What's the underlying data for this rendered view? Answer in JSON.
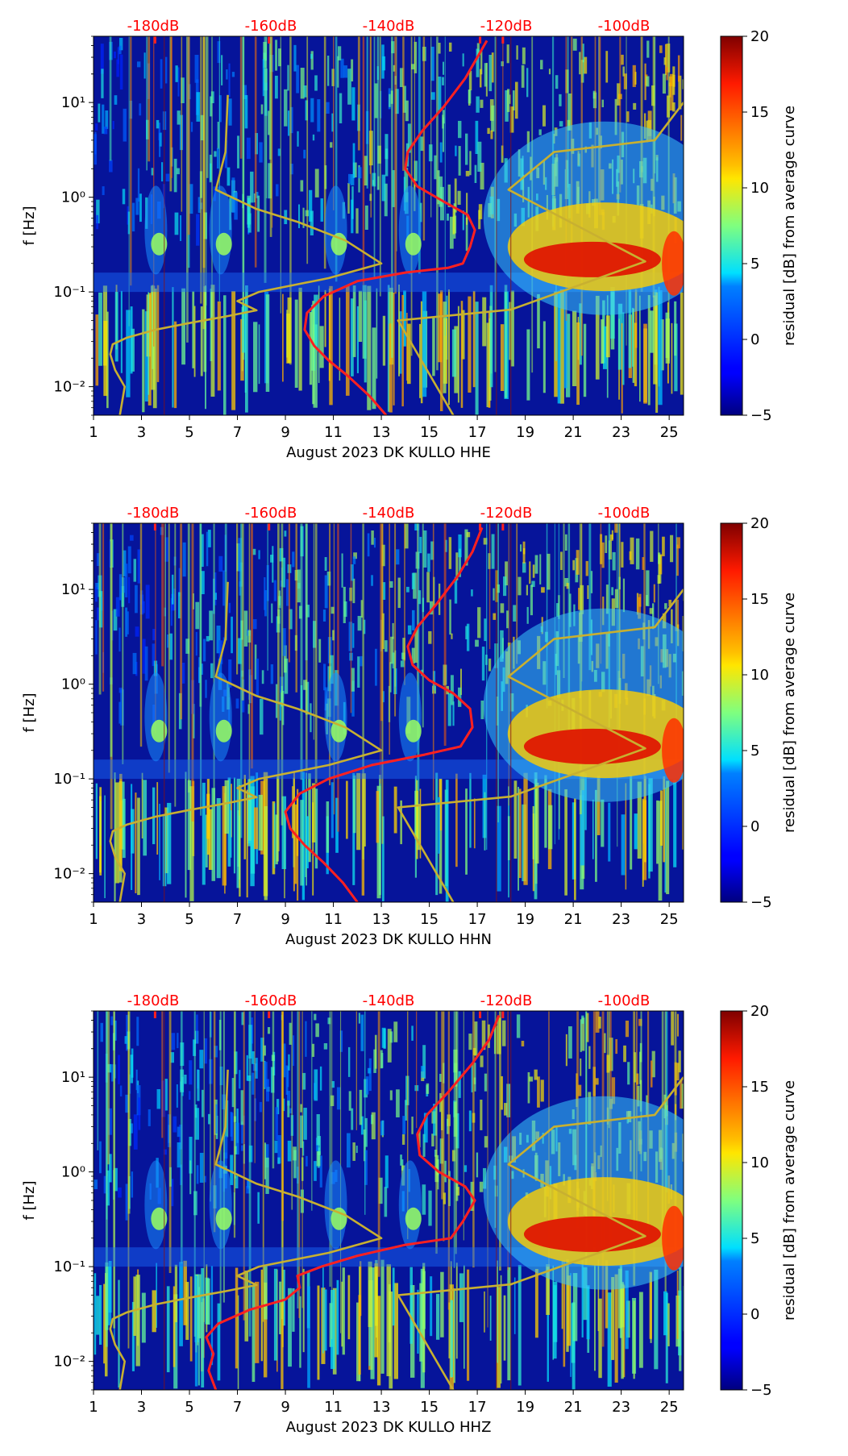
{
  "chart_data": [
    {
      "type": "heatmap",
      "xlabel": "August 2023 DK KULLO  HHE",
      "ylabel": "f [Hz]",
      "x_ticks": [
        "1",
        "3",
        "5",
        "7",
        "9",
        "11",
        "13",
        "15",
        "17",
        "19",
        "21",
        "23",
        "25"
      ],
      "xlim": [
        1,
        25.6
      ],
      "y_ticks": [
        "10⁻²",
        "10⁻¹",
        "10⁰",
        "10¹"
      ],
      "ylim": [
        0.005,
        50
      ],
      "y_scale": "log",
      "top_ticks": [
        "-180dB",
        "-160dB",
        "-140dB",
        "-120dB",
        "-100dB"
      ],
      "colorbar": {
        "label": "residual [dB] from average curve",
        "ticks": [
          "20",
          "15",
          "10",
          "5",
          "0",
          "−5"
        ],
        "range": [
          -5,
          20
        ],
        "colormap": "jet"
      },
      "series": [
        {
          "color": "#ff2020",
          "points": [
            [
              13.2,
              0.005
            ],
            [
              12.5,
              0.008
            ],
            [
              11.6,
              0.013
            ],
            [
              10.8,
              0.019
            ],
            [
              10.2,
              0.027
            ],
            [
              9.8,
              0.04
            ],
            [
              9.9,
              0.06
            ],
            [
              10.6,
              0.09
            ],
            [
              12.0,
              0.13
            ],
            [
              14.0,
              0.16
            ],
            [
              15.8,
              0.18
            ],
            [
              16.4,
              0.2
            ],
            [
              16.7,
              0.3
            ],
            [
              16.9,
              0.45
            ],
            [
              16.6,
              0.65
            ],
            [
              15.6,
              0.9
            ],
            [
              14.5,
              1.3
            ],
            [
              14.0,
              2.0
            ],
            [
              14.1,
              3.0
            ],
            [
              14.7,
              5.0
            ],
            [
              15.6,
              9.0
            ],
            [
              16.5,
              18.0
            ],
            [
              17.0,
              30.0
            ],
            [
              17.4,
              45.0
            ]
          ]
        },
        {
          "color": "#c8b030",
          "points": [
            [
              2.1,
              0.005
            ],
            [
              2.3,
              0.01
            ],
            [
              1.9,
              0.015
            ],
            [
              1.7,
              0.022
            ],
            [
              1.8,
              0.028
            ],
            [
              2.4,
              0.033
            ],
            [
              3.6,
              0.04
            ],
            [
              5.0,
              0.047
            ],
            [
              6.5,
              0.055
            ],
            [
              7.8,
              0.064
            ],
            [
              7.0,
              0.08
            ],
            [
              7.9,
              0.1
            ],
            [
              10.8,
              0.14
            ],
            [
              13.0,
              0.2
            ],
            [
              11.5,
              0.35
            ],
            [
              9.5,
              0.55
            ],
            [
              7.8,
              0.75
            ],
            [
              6.1,
              1.2
            ],
            [
              6.5,
              3.0
            ],
            [
              6.6,
              12.0
            ]
          ]
        },
        {
          "color": "#c8b030",
          "points": [
            [
              16.0,
              0.005
            ],
            [
              13.7,
              0.05
            ],
            [
              18.4,
              0.065
            ],
            [
              24.0,
              0.21
            ],
            [
              18.3,
              1.2
            ],
            [
              20.2,
              3.0
            ],
            [
              24.4,
              4.0
            ],
            [
              25.6,
              10.0
            ]
          ]
        }
      ]
    },
    {
      "type": "heatmap",
      "xlabel": "August 2023 DK KULLO  HHN",
      "ylabel": "f [Hz]",
      "x_ticks": [
        "1",
        "3",
        "5",
        "7",
        "9",
        "11",
        "13",
        "15",
        "17",
        "19",
        "21",
        "23",
        "25"
      ],
      "xlim": [
        1,
        25.6
      ],
      "y_ticks": [
        "10⁻²",
        "10⁻¹",
        "10⁰",
        "10¹"
      ],
      "ylim": [
        0.005,
        50
      ],
      "y_scale": "log",
      "top_ticks": [
        "-180dB",
        "-160dB",
        "-140dB",
        "-120dB",
        "-100dB"
      ],
      "colorbar": {
        "label": "residual [dB] from average curve",
        "ticks": [
          "20",
          "15",
          "10",
          "5",
          "0",
          "−5"
        ],
        "range": [
          -5,
          20
        ],
        "colormap": "jet"
      },
      "series": [
        {
          "color": "#ff2020",
          "points": [
            [
              12.0,
              0.005
            ],
            [
              11.4,
              0.008
            ],
            [
              10.6,
              0.013
            ],
            [
              9.8,
              0.02
            ],
            [
              9.2,
              0.03
            ],
            [
              9.0,
              0.045
            ],
            [
              9.6,
              0.07
            ],
            [
              10.8,
              0.1
            ],
            [
              12.6,
              0.14
            ],
            [
              14.8,
              0.18
            ],
            [
              16.3,
              0.22
            ],
            [
              16.8,
              0.35
            ],
            [
              16.7,
              0.55
            ],
            [
              16.0,
              0.8
            ],
            [
              15.0,
              1.1
            ],
            [
              14.3,
              1.6
            ],
            [
              14.1,
              2.5
            ],
            [
              14.5,
              4.0
            ],
            [
              15.3,
              7.0
            ],
            [
              16.2,
              14.0
            ],
            [
              16.8,
              25.0
            ],
            [
              17.2,
              45.0
            ]
          ]
        },
        {
          "color": "#c8b030",
          "points": [
            [
              2.1,
              0.005
            ],
            [
              2.3,
              0.01
            ],
            [
              1.9,
              0.015
            ],
            [
              1.7,
              0.022
            ],
            [
              1.8,
              0.028
            ],
            [
              2.4,
              0.033
            ],
            [
              3.6,
              0.04
            ],
            [
              5.0,
              0.047
            ],
            [
              6.5,
              0.055
            ],
            [
              7.8,
              0.064
            ],
            [
              7.0,
              0.08
            ],
            [
              7.9,
              0.1
            ],
            [
              10.8,
              0.14
            ],
            [
              13.0,
              0.2
            ],
            [
              11.5,
              0.35
            ],
            [
              9.5,
              0.55
            ],
            [
              7.8,
              0.75
            ],
            [
              6.1,
              1.2
            ],
            [
              6.5,
              3.0
            ],
            [
              6.6,
              12.0
            ]
          ]
        },
        {
          "color": "#c8b030",
          "points": [
            [
              16.0,
              0.005
            ],
            [
              13.7,
              0.05
            ],
            [
              18.4,
              0.065
            ],
            [
              24.0,
              0.21
            ],
            [
              18.3,
              1.2
            ],
            [
              20.2,
              3.0
            ],
            [
              24.4,
              4.0
            ],
            [
              25.6,
              10.0
            ]
          ]
        }
      ]
    },
    {
      "type": "heatmap",
      "xlabel": "August 2023 DK KULLO  HHZ",
      "ylabel": "f [Hz]",
      "x_ticks": [
        "1",
        "3",
        "5",
        "7",
        "9",
        "11",
        "13",
        "15",
        "17",
        "19",
        "21",
        "23",
        "25"
      ],
      "xlim": [
        1,
        25.6
      ],
      "y_ticks": [
        "10⁻²",
        "10⁻¹",
        "10⁰",
        "10¹"
      ],
      "ylim": [
        0.005,
        50
      ],
      "y_scale": "log",
      "top_ticks": [
        "-180dB",
        "-160dB",
        "-140dB",
        "-120dB",
        "-100dB"
      ],
      "colorbar": {
        "label": "residual [dB] from average curve",
        "ticks": [
          "20",
          "15",
          "10",
          "5",
          "0",
          "−5"
        ],
        "range": [
          -5,
          20
        ],
        "colormap": "jet"
      },
      "series": [
        {
          "color": "#ff2020",
          "points": [
            [
              6.1,
              0.005
            ],
            [
              5.8,
              0.008
            ],
            [
              6.0,
              0.012
            ],
            [
              5.7,
              0.018
            ],
            [
              6.2,
              0.025
            ],
            [
              7.5,
              0.035
            ],
            [
              9.0,
              0.045
            ],
            [
              9.6,
              0.06
            ],
            [
              9.5,
              0.08
            ],
            [
              10.5,
              0.1
            ],
            [
              12.0,
              0.13
            ],
            [
              14.0,
              0.17
            ],
            [
              15.9,
              0.2
            ],
            [
              16.4,
              0.3
            ],
            [
              16.9,
              0.5
            ],
            [
              16.5,
              0.7
            ],
            [
              15.4,
              1.0
            ],
            [
              14.6,
              1.5
            ],
            [
              14.5,
              2.5
            ],
            [
              14.9,
              4.0
            ],
            [
              15.8,
              7.0
            ],
            [
              16.8,
              14.0
            ],
            [
              17.5,
              25.0
            ],
            [
              17.9,
              45.0
            ]
          ]
        },
        {
          "color": "#c8b030",
          "points": [
            [
              2.1,
              0.005
            ],
            [
              2.3,
              0.01
            ],
            [
              1.9,
              0.015
            ],
            [
              1.7,
              0.022
            ],
            [
              1.8,
              0.028
            ],
            [
              2.4,
              0.033
            ],
            [
              3.6,
              0.04
            ],
            [
              5.0,
              0.047
            ],
            [
              6.5,
              0.055
            ],
            [
              7.8,
              0.064
            ],
            [
              7.0,
              0.08
            ],
            [
              7.9,
              0.1
            ],
            [
              10.8,
              0.14
            ],
            [
              13.0,
              0.2
            ],
            [
              11.5,
              0.35
            ],
            [
              9.5,
              0.55
            ],
            [
              7.8,
              0.75
            ],
            [
              6.1,
              1.2
            ],
            [
              6.5,
              3.0
            ],
            [
              6.6,
              12.0
            ]
          ]
        },
        {
          "color": "#c8b030",
          "points": [
            [
              16.0,
              0.005
            ],
            [
              13.7,
              0.05
            ],
            [
              18.4,
              0.065
            ],
            [
              24.0,
              0.21
            ],
            [
              18.3,
              1.2
            ],
            [
              20.2,
              3.0
            ],
            [
              24.4,
              4.0
            ],
            [
              25.6,
              10.0
            ]
          ]
        }
      ]
    }
  ]
}
